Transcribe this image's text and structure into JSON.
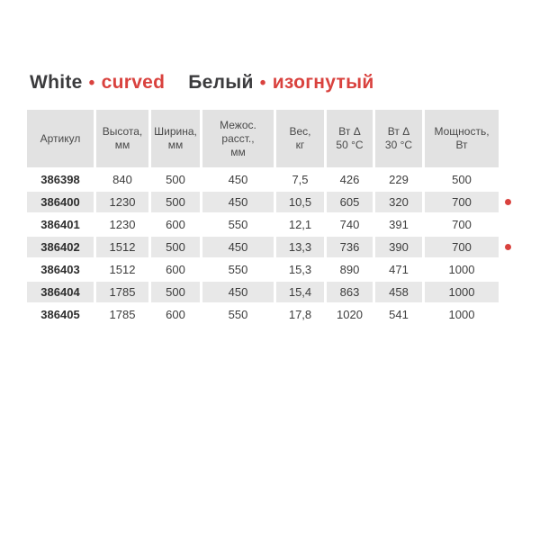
{
  "title": {
    "en_word": "White",
    "en_accent": "curved",
    "ru_word": "Белый",
    "ru_accent": "изогнутый",
    "bullet": "•"
  },
  "colors": {
    "accent_red": "#d9423e",
    "title_dark": "#3b3b3d",
    "header_bg": "#e2e2e2",
    "alt_row_bg": "#e8e8e8",
    "body_text": "#3d3d3d"
  },
  "table": {
    "columns": [
      "Артикул",
      "Высота,\nмм",
      "Ширина,\nмм",
      "Межос.\nрасст.,\nмм",
      "Вес,\nкг",
      "Вт Δ\n50 °C",
      "Вт Δ\n30 °C",
      "Мощность,\nВт"
    ],
    "rows": [
      {
        "article": "386398",
        "values": [
          "840",
          "500",
          "450",
          "7,5",
          "426",
          "229",
          "500"
        ],
        "marked": false
      },
      {
        "article": "386400",
        "values": [
          "1230",
          "500",
          "450",
          "10,5",
          "605",
          "320",
          "700"
        ],
        "marked": true
      },
      {
        "article": "386401",
        "values": [
          "1230",
          "600",
          "550",
          "12,1",
          "740",
          "391",
          "700"
        ],
        "marked": false
      },
      {
        "article": "386402",
        "values": [
          "1512",
          "500",
          "450",
          "13,3",
          "736",
          "390",
          "700"
        ],
        "marked": true
      },
      {
        "article": "386403",
        "values": [
          "1512",
          "600",
          "550",
          "15,3",
          "890",
          "471",
          "1000"
        ],
        "marked": false
      },
      {
        "article": "386404",
        "values": [
          "1785",
          "500",
          "450",
          "15,4",
          "863",
          "458",
          "1000"
        ],
        "marked": false
      },
      {
        "article": "386405",
        "values": [
          "1785",
          "600",
          "550",
          "17,8",
          "1020",
          "541",
          "1000"
        ],
        "marked": false
      }
    ]
  }
}
